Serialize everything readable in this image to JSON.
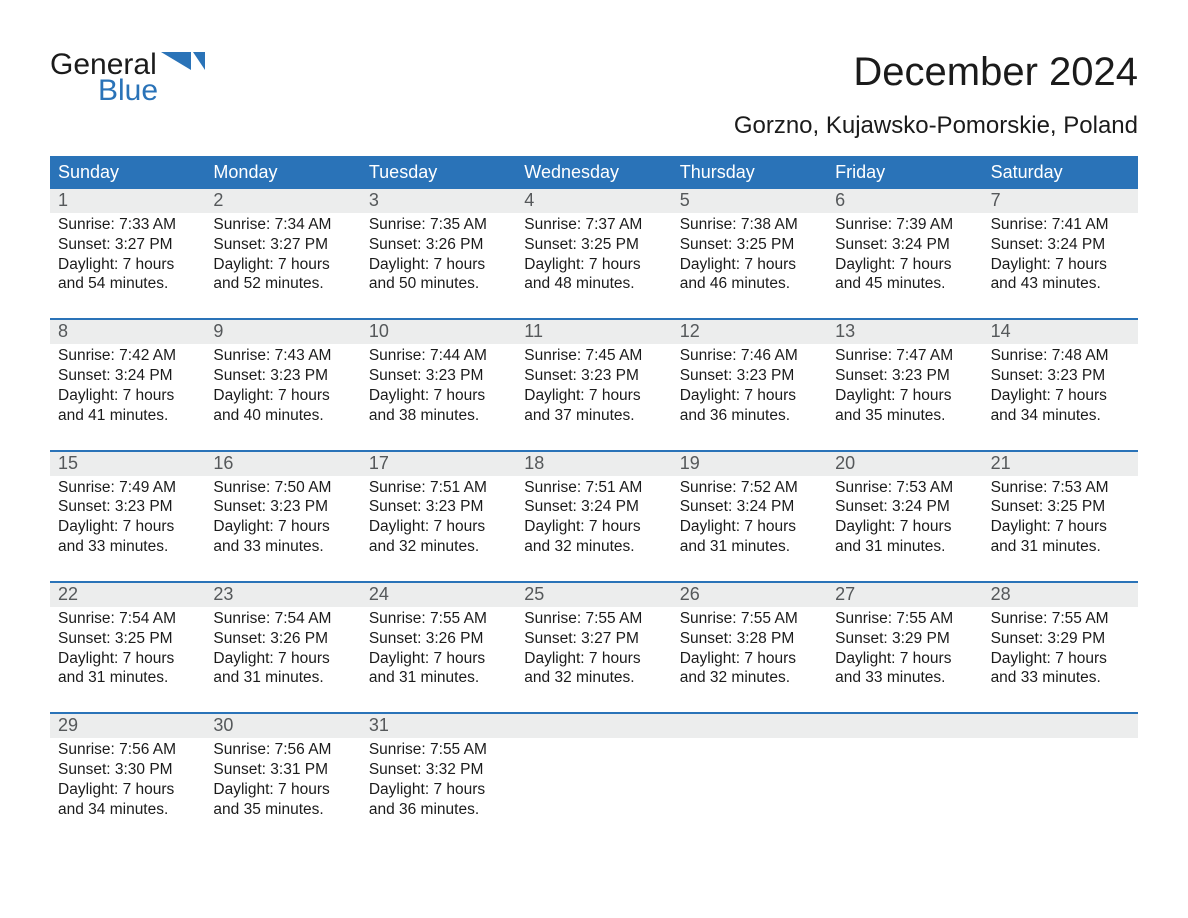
{
  "colors": {
    "header_bg": "#2a73b8",
    "header_text": "#ffffff",
    "daynum_bg": "#eceded",
    "daynum_text": "#55585a",
    "body_text": "#1b1b1b",
    "week_divider": "#2a73b8",
    "logo_blue": "#2a73b8",
    "page_bg": "#ffffff"
  },
  "typography": {
    "title_fontsize": 40,
    "subtitle_fontsize": 24,
    "dow_fontsize": 18,
    "daynum_fontsize": 18,
    "body_fontsize": 15.5,
    "logo_fontsize": 30
  },
  "logo": {
    "word1": "General",
    "word2": "Blue"
  },
  "title": "December 2024",
  "subtitle": "Gorzno, Kujawsko-Pomorskie, Poland",
  "days_of_week": [
    "Sunday",
    "Monday",
    "Tuesday",
    "Wednesday",
    "Thursday",
    "Friday",
    "Saturday"
  ],
  "weeks": [
    [
      {
        "day": "1",
        "sunrise": "Sunrise: 7:33 AM",
        "sunset": "Sunset: 3:27 PM",
        "d1": "Daylight: 7 hours",
        "d2": "and 54 minutes."
      },
      {
        "day": "2",
        "sunrise": "Sunrise: 7:34 AM",
        "sunset": "Sunset: 3:27 PM",
        "d1": "Daylight: 7 hours",
        "d2": "and 52 minutes."
      },
      {
        "day": "3",
        "sunrise": "Sunrise: 7:35 AM",
        "sunset": "Sunset: 3:26 PM",
        "d1": "Daylight: 7 hours",
        "d2": "and 50 minutes."
      },
      {
        "day": "4",
        "sunrise": "Sunrise: 7:37 AM",
        "sunset": "Sunset: 3:25 PM",
        "d1": "Daylight: 7 hours",
        "d2": "and 48 minutes."
      },
      {
        "day": "5",
        "sunrise": "Sunrise: 7:38 AM",
        "sunset": "Sunset: 3:25 PM",
        "d1": "Daylight: 7 hours",
        "d2": "and 46 minutes."
      },
      {
        "day": "6",
        "sunrise": "Sunrise: 7:39 AM",
        "sunset": "Sunset: 3:24 PM",
        "d1": "Daylight: 7 hours",
        "d2": "and 45 minutes."
      },
      {
        "day": "7",
        "sunrise": "Sunrise: 7:41 AM",
        "sunset": "Sunset: 3:24 PM",
        "d1": "Daylight: 7 hours",
        "d2": "and 43 minutes."
      }
    ],
    [
      {
        "day": "8",
        "sunrise": "Sunrise: 7:42 AM",
        "sunset": "Sunset: 3:24 PM",
        "d1": "Daylight: 7 hours",
        "d2": "and 41 minutes."
      },
      {
        "day": "9",
        "sunrise": "Sunrise: 7:43 AM",
        "sunset": "Sunset: 3:23 PM",
        "d1": "Daylight: 7 hours",
        "d2": "and 40 minutes."
      },
      {
        "day": "10",
        "sunrise": "Sunrise: 7:44 AM",
        "sunset": "Sunset: 3:23 PM",
        "d1": "Daylight: 7 hours",
        "d2": "and 38 minutes."
      },
      {
        "day": "11",
        "sunrise": "Sunrise: 7:45 AM",
        "sunset": "Sunset: 3:23 PM",
        "d1": "Daylight: 7 hours",
        "d2": "and 37 minutes."
      },
      {
        "day": "12",
        "sunrise": "Sunrise: 7:46 AM",
        "sunset": "Sunset: 3:23 PM",
        "d1": "Daylight: 7 hours",
        "d2": "and 36 minutes."
      },
      {
        "day": "13",
        "sunrise": "Sunrise: 7:47 AM",
        "sunset": "Sunset: 3:23 PM",
        "d1": "Daylight: 7 hours",
        "d2": "and 35 minutes."
      },
      {
        "day": "14",
        "sunrise": "Sunrise: 7:48 AM",
        "sunset": "Sunset: 3:23 PM",
        "d1": "Daylight: 7 hours",
        "d2": "and 34 minutes."
      }
    ],
    [
      {
        "day": "15",
        "sunrise": "Sunrise: 7:49 AM",
        "sunset": "Sunset: 3:23 PM",
        "d1": "Daylight: 7 hours",
        "d2": "and 33 minutes."
      },
      {
        "day": "16",
        "sunrise": "Sunrise: 7:50 AM",
        "sunset": "Sunset: 3:23 PM",
        "d1": "Daylight: 7 hours",
        "d2": "and 33 minutes."
      },
      {
        "day": "17",
        "sunrise": "Sunrise: 7:51 AM",
        "sunset": "Sunset: 3:23 PM",
        "d1": "Daylight: 7 hours",
        "d2": "and 32 minutes."
      },
      {
        "day": "18",
        "sunrise": "Sunrise: 7:51 AM",
        "sunset": "Sunset: 3:24 PM",
        "d1": "Daylight: 7 hours",
        "d2": "and 32 minutes."
      },
      {
        "day": "19",
        "sunrise": "Sunrise: 7:52 AM",
        "sunset": "Sunset: 3:24 PM",
        "d1": "Daylight: 7 hours",
        "d2": "and 31 minutes."
      },
      {
        "day": "20",
        "sunrise": "Sunrise: 7:53 AM",
        "sunset": "Sunset: 3:24 PM",
        "d1": "Daylight: 7 hours",
        "d2": "and 31 minutes."
      },
      {
        "day": "21",
        "sunrise": "Sunrise: 7:53 AM",
        "sunset": "Sunset: 3:25 PM",
        "d1": "Daylight: 7 hours",
        "d2": "and 31 minutes."
      }
    ],
    [
      {
        "day": "22",
        "sunrise": "Sunrise: 7:54 AM",
        "sunset": "Sunset: 3:25 PM",
        "d1": "Daylight: 7 hours",
        "d2": "and 31 minutes."
      },
      {
        "day": "23",
        "sunrise": "Sunrise: 7:54 AM",
        "sunset": "Sunset: 3:26 PM",
        "d1": "Daylight: 7 hours",
        "d2": "and 31 minutes."
      },
      {
        "day": "24",
        "sunrise": "Sunrise: 7:55 AM",
        "sunset": "Sunset: 3:26 PM",
        "d1": "Daylight: 7 hours",
        "d2": "and 31 minutes."
      },
      {
        "day": "25",
        "sunrise": "Sunrise: 7:55 AM",
        "sunset": "Sunset: 3:27 PM",
        "d1": "Daylight: 7 hours",
        "d2": "and 32 minutes."
      },
      {
        "day": "26",
        "sunrise": "Sunrise: 7:55 AM",
        "sunset": "Sunset: 3:28 PM",
        "d1": "Daylight: 7 hours",
        "d2": "and 32 minutes."
      },
      {
        "day": "27",
        "sunrise": "Sunrise: 7:55 AM",
        "sunset": "Sunset: 3:29 PM",
        "d1": "Daylight: 7 hours",
        "d2": "and 33 minutes."
      },
      {
        "day": "28",
        "sunrise": "Sunrise: 7:55 AM",
        "sunset": "Sunset: 3:29 PM",
        "d1": "Daylight: 7 hours",
        "d2": "and 33 minutes."
      }
    ],
    [
      {
        "day": "29",
        "sunrise": "Sunrise: 7:56 AM",
        "sunset": "Sunset: 3:30 PM",
        "d1": "Daylight: 7 hours",
        "d2": "and 34 minutes."
      },
      {
        "day": "30",
        "sunrise": "Sunrise: 7:56 AM",
        "sunset": "Sunset: 3:31 PM",
        "d1": "Daylight: 7 hours",
        "d2": "and 35 minutes."
      },
      {
        "day": "31",
        "sunrise": "Sunrise: 7:55 AM",
        "sunset": "Sunset: 3:32 PM",
        "d1": "Daylight: 7 hours",
        "d2": "and 36 minutes."
      },
      null,
      null,
      null,
      null
    ]
  ]
}
